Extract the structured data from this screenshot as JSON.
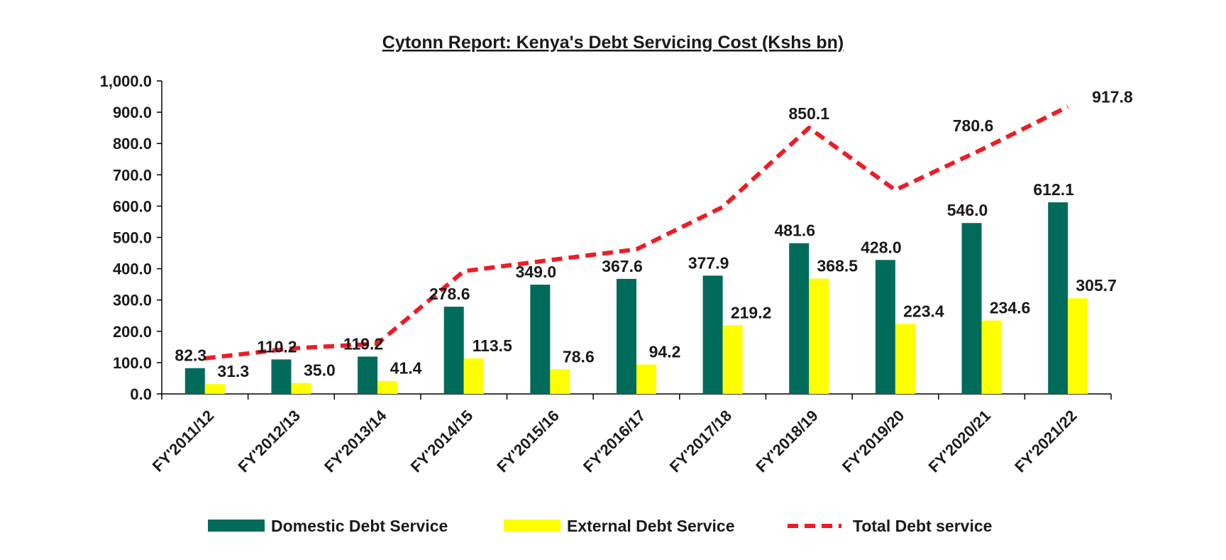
{
  "chart_data": {
    "type": "bar",
    "title": "Cytonn Report: Kenya's Debt Servicing Cost (Kshs bn)",
    "xlabel": "",
    "ylabel": "",
    "ylim": [
      0,
      1000
    ],
    "yticks": [
      "0.0",
      "100.0",
      "200.0",
      "300.0",
      "400.0",
      "500.0",
      "600.0",
      "700.0",
      "800.0",
      "900.0",
      "1,000.0"
    ],
    "categories": [
      "FY'2011/12",
      "FY'2012/13",
      "FY'2013/14",
      "FY'2014/15",
      "FY'2015/16",
      "FY'2016/17",
      "FY'2017/18",
      "FY'2018/19",
      "FY'2019/20",
      "FY'2020/21",
      "FY'2021/22"
    ],
    "series": [
      {
        "name": "Domestic Debt Service",
        "kind": "bar",
        "color": "#006B5B",
        "values": [
          82.3,
          110.2,
          119.2,
          278.6,
          349.0,
          367.6,
          377.9,
          481.6,
          428.0,
          546.0,
          612.1
        ],
        "labels": [
          "82.3",
          "110.2",
          "119.2",
          "278.6",
          "349.0",
          "367.6",
          "377.9",
          "481.6",
          "428.0",
          "546.0",
          "612.1"
        ]
      },
      {
        "name": "External Debt Service",
        "kind": "bar",
        "color": "#FFFF00",
        "values": [
          31.3,
          35.0,
          41.4,
          113.5,
          78.6,
          94.2,
          219.2,
          368.5,
          223.4,
          234.6,
          305.7
        ],
        "labels": [
          "31.3",
          "35.0",
          "41.4",
          "113.5",
          "78.6",
          "94.2",
          "219.2",
          "368.5",
          "223.4",
          "234.6",
          "305.7"
        ]
      },
      {
        "name": "Total Debt service",
        "kind": "line",
        "style": "dashed",
        "color": "#EE1C25",
        "values": [
          113.6,
          145.2,
          160.6,
          392.1,
          427.6,
          461.8,
          597.1,
          850.1,
          651.4,
          780.6,
          917.8
        ],
        "labels": [
          "",
          "",
          "",
          "",
          "",
          "",
          "",
          "850.1",
          "",
          "780.6",
          "917.8"
        ]
      }
    ],
    "grid": false,
    "legend": "bottom"
  }
}
